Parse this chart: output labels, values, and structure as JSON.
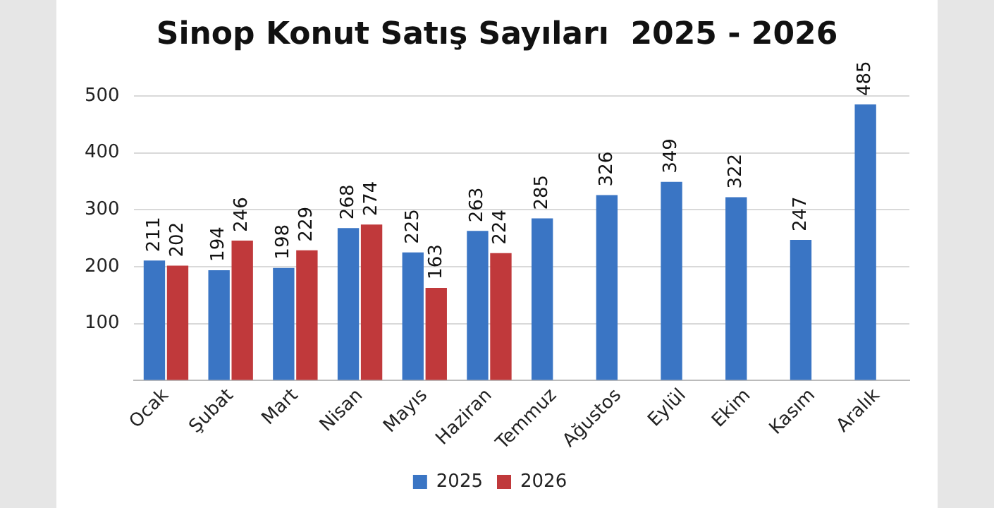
{
  "chart_data": {
    "type": "bar",
    "title": "Sinop Konut Satış Sayıları  2025 - 2026",
    "categories": [
      "Ocak",
      "Şubat",
      "Mart",
      "Nisan",
      "Mayıs",
      "Haziran",
      "Temmuz",
      "Ağustos",
      "Eylül",
      "Ekim",
      "Kasım",
      "Aralık"
    ],
    "series": [
      {
        "name": "2025",
        "color": "#3a75c4",
        "values": [
          211,
          194,
          198,
          268,
          225,
          263,
          285,
          326,
          349,
          322,
          247,
          485
        ]
      },
      {
        "name": "2026",
        "color": "#c0393b",
        "values": [
          202,
          246,
          229,
          274,
          163,
          224,
          null,
          null,
          null,
          null,
          null,
          null
        ]
      }
    ],
    "ylim": [
      0,
      500
    ],
    "yticks": [
      {
        "value": 0,
        "label": null
      },
      100,
      200,
      300,
      400,
      500
    ],
    "grid": "y",
    "legend": "bottom",
    "data_labels": true
  }
}
